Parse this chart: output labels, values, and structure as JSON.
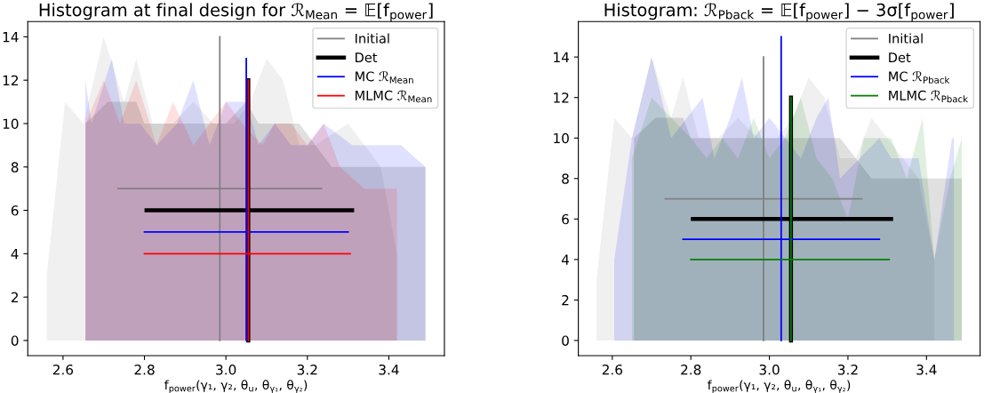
{
  "chart_data": [
    {
      "type": "area",
      "title": "Histogram at final design for ℛ$_{Mean}$ = 𝔼[f$_{power}$]",
      "xlabel": "f$_{power}$(γ₁, γ₂, θ$_{u}$, θ$_{γ₁}$, θ$_{γ₂}$)",
      "xlim": [
        2.5135,
        3.5365
      ],
      "ylim": [
        -0.7,
        14.7
      ],
      "xticks": [
        {
          "value": 2.6,
          "label": "2.6"
        },
        {
          "value": 2.8,
          "label": "2.8"
        },
        {
          "value": 3.0,
          "label": "3.0"
        },
        {
          "value": 3.2,
          "label": "3.2"
        },
        {
          "value": 3.4,
          "label": "3.4"
        }
      ],
      "yticks": [
        0,
        2,
        4,
        6,
        8,
        10,
        12,
        14
      ],
      "legend": "top right",
      "series": [
        {
          "color": "#808080",
          "x": [
            2.56,
            2.56,
            2.605,
            2.65,
            2.7,
            2.75,
            2.78,
            2.82,
            2.87,
            2.92,
            2.97,
            3.02,
            3.06,
            3.1,
            3.14,
            3.18,
            3.22,
            3.26,
            3.3,
            3.34,
            3.38,
            3.42,
            3.42
          ],
          "values": [
            0,
            3,
            11,
            10,
            14,
            11,
            13,
            10,
            10,
            11,
            10,
            10,
            11,
            13,
            12,
            9,
            9,
            null,
            10,
            9,
            8,
            4,
            0
          ]
        },
        {
          "color": "#000000",
          "x": [
            2.655,
            2.655,
            2.71,
            2.78,
            2.8,
            3.0,
            3.05,
            3.08,
            3.18,
            3.22,
            3.26,
            3.49,
            3.49
          ],
          "values": [
            0,
            10,
            11,
            11,
            10,
            10,
            11,
            10,
            10,
            9,
            8,
            8,
            0
          ]
        },
        {
          "color": "#0000ff",
          "x": [
            2.655,
            2.655,
            2.67,
            2.72,
            2.75,
            2.79,
            2.83,
            2.88,
            2.92,
            2.96,
            3.0,
            3.05,
            3.08,
            3.12,
            3.16,
            3.2,
            3.24,
            3.27,
            3.31,
            3.35,
            3.39,
            3.43,
            3.49,
            3.49
          ],
          "values": [
            0,
            12,
            10,
            13,
            10,
            10,
            9,
            10,
            12,
            9,
            11,
            11,
            9,
            10,
            9,
            9,
            10,
            null,
            9,
            null,
            9,
            9,
            8,
            0
          ]
        },
        {
          "color": "#ff0000",
          "x": [
            2.655,
            2.655,
            2.7,
            2.74,
            2.78,
            2.83,
            2.87,
            2.92,
            2.96,
            3.0,
            3.04,
            3.09,
            3.12,
            3.16,
            3.2,
            3.24,
            3.28,
            3.31,
            3.34,
            3.38,
            3.42,
            3.42
          ],
          "values": [
            0,
            10,
            12,
            10,
            12,
            9,
            11,
            9,
            10,
            11,
            10,
            9,
            10,
            10,
            9,
            10,
            8,
            null,
            7,
            null,
            7,
            0
          ]
        },
        {
          "type": "line",
          "name": "Initial",
          "color": "#808080",
          "x": [
            2.985,
            2.985,
            null,
            2.735,
            3.235
          ],
          "values": [
            0,
            14,
            null,
            7,
            7
          ]
        },
        {
          "type": "line",
          "name": "Det",
          "color": "#000000",
          "x": [
            3.055,
            3.055,
            null,
            2.805,
            3.31
          ],
          "values": [
            0,
            12,
            null,
            6,
            6
          ]
        },
        {
          "type": "line",
          "name": "MC ℛ$_{Mean}$",
          "color": "#0000ff",
          "x": [
            3.05,
            3.05,
            null,
            2.8,
            3.3
          ],
          "values": [
            0,
            13,
            null,
            5,
            5
          ]
        },
        {
          "type": "line",
          "name": "MLMC ℛ$_{Mean}$",
          "color": "#ff0000",
          "x": [
            3.055,
            3.055,
            null,
            2.8,
            3.305
          ],
          "values": [
            0,
            12,
            null,
            4,
            4
          ]
        }
      ]
    },
    {
      "type": "area",
      "title": "Histogram: ℛ$_{Pback}$ = 𝔼[f$_{power}$] − 3σ[f$_{power}$]",
      "xlabel": "f$_{power}$(γ₁, γ₂, θ$_{u}$, θ$_{γ₁}$, θ$_{γ₂}$)",
      "xlim": [
        2.5135,
        3.5365
      ],
      "ylim": [
        -0.75,
        15.75
      ],
      "xticks": [
        {
          "value": 2.6,
          "label": "2.6"
        },
        {
          "value": 2.8,
          "label": "2.8"
        },
        {
          "value": 3.0,
          "label": "3.0"
        },
        {
          "value": 3.2,
          "label": "3.2"
        },
        {
          "value": 3.4,
          "label": "3.4"
        }
      ],
      "yticks": [
        0,
        2,
        4,
        6,
        8,
        10,
        12,
        14
      ],
      "legend": "top right",
      "series": [
        {
          "color": "#808080",
          "x": [
            2.56,
            2.56,
            2.605,
            2.65,
            2.7,
            2.75,
            2.78,
            2.82,
            2.87,
            2.92,
            2.97,
            3.02,
            3.06,
            3.1,
            3.14,
            3.18,
            3.22,
            3.26,
            3.3,
            3.34,
            3.38,
            3.42,
            3.42
          ],
          "values": [
            0,
            3,
            11,
            10,
            14,
            11,
            13,
            10,
            10,
            11,
            10,
            10,
            11,
            13,
            12,
            9,
            9,
            11,
            10,
            9,
            8,
            4,
            0
          ]
        },
        {
          "color": "#000000",
          "x": [
            2.655,
            2.655,
            2.71,
            2.78,
            2.8,
            3.18,
            3.22,
            3.26,
            3.49,
            3.49
          ],
          "values": [
            0,
            10,
            11,
            11,
            10,
            10,
            9,
            8,
            8,
            0
          ]
        },
        {
          "color": "#0000ff",
          "x": [
            2.605,
            2.605,
            2.65,
            2.7,
            2.75,
            2.79,
            2.83,
            2.86,
            2.9,
            2.93,
            2.96,
            3.0,
            3.04,
            3.08,
            3.12,
            3.15,
            3.18,
            3.22,
            3.25,
            3.28,
            3.31,
            3.35,
            3.38,
            3.42,
            3.465,
            3.47,
            3.47
          ],
          "values": [
            0,
            4,
            10,
            14,
            10,
            11,
            12,
            9,
            11,
            13,
            10,
            11,
            10,
            9,
            11,
            12,
            8,
            null,
            null,
            10,
            9,
            null,
            9,
            4,
            10,
            10,
            0
          ]
        },
        {
          "color": "#008000",
          "x": [
            2.65,
            2.65,
            2.7,
            2.75,
            2.8,
            2.84,
            2.88,
            2.92,
            2.96,
            3.0,
            3.04,
            3.08,
            3.12,
            3.16,
            3.2,
            3.24,
            3.27,
            3.31,
            3.35,
            3.39,
            3.42,
            3.46,
            3.49,
            3.49
          ],
          "values": [
            0,
            9,
            12,
            11,
            10,
            9,
            10,
            9,
            11,
            9,
            10,
            12,
            9,
            8,
            6,
            10,
            null,
            10,
            8,
            11,
            4,
            8,
            10,
            0
          ]
        },
        {
          "type": "line",
          "name": "Initial",
          "color": "#808080",
          "x": [
            2.985,
            2.985,
            null,
            2.735,
            3.235
          ],
          "values": [
            0,
            14,
            null,
            7,
            7
          ]
        },
        {
          "type": "line",
          "name": "Det",
          "color": "#000000",
          "x": [
            3.055,
            3.055,
            null,
            2.805,
            3.31
          ],
          "values": [
            0,
            12,
            null,
            6,
            6
          ]
        },
        {
          "type": "line",
          "name": "MC ℛ$_{Pback}$",
          "color": "#0000ff",
          "x": [
            3.03,
            3.03,
            null,
            2.78,
            3.28
          ],
          "values": [
            0,
            15,
            null,
            5,
            5
          ]
        },
        {
          "type": "line",
          "name": "MLMC ℛ$_{Pback}$",
          "color": "#008000",
          "x": [
            3.055,
            3.055,
            null,
            2.8,
            3.305
          ],
          "values": [
            0,
            12,
            null,
            4,
            4
          ]
        }
      ]
    }
  ]
}
